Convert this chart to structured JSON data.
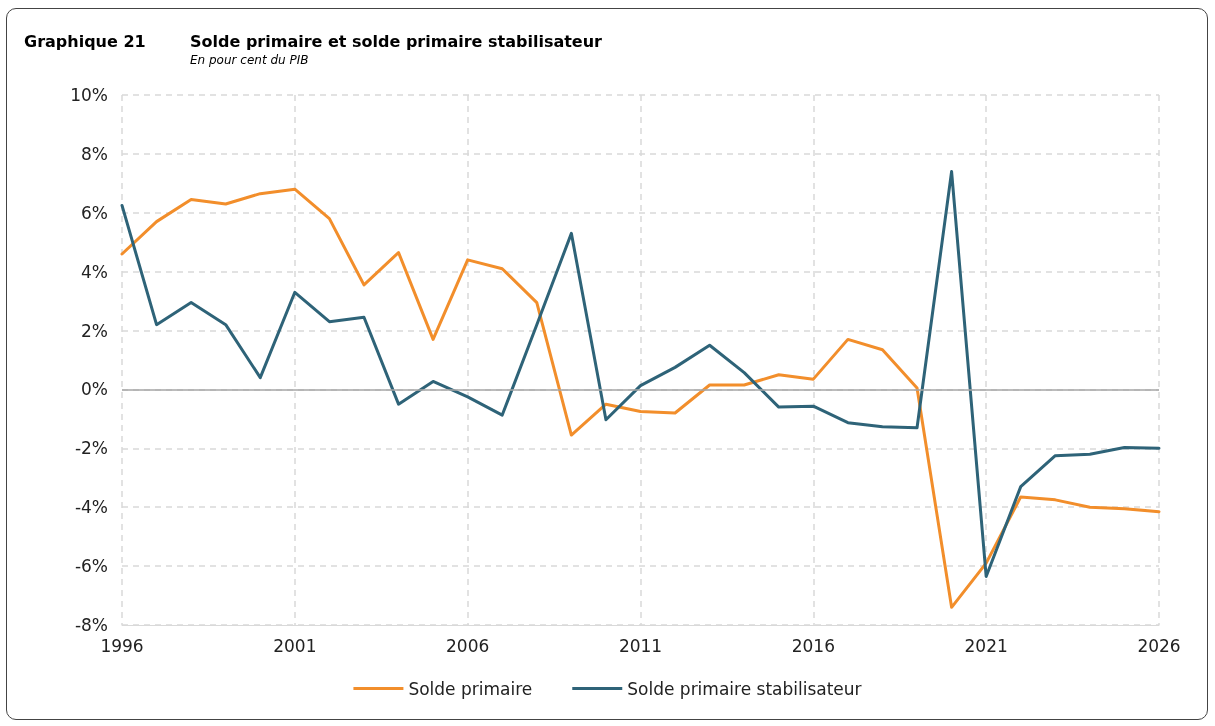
{
  "chart_data": {
    "type": "line",
    "title": "Solde primaire et solde primaire stabilisateur",
    "subtitle": "En pour cent du PIB",
    "annotations": [
      "Graphique 21"
    ],
    "x": [
      1996,
      1997,
      1998,
      1999,
      2000,
      2001,
      2002,
      2003,
      2004,
      2005,
      2006,
      2007,
      2008,
      2009,
      2010,
      2011,
      2012,
      2013,
      2014,
      2015,
      2016,
      2017,
      2018,
      2019,
      2020,
      2021,
      2022,
      2023,
      2024,
      2025,
      2026
    ],
    "series": [
      {
        "name": "Solde primaire",
        "color": "#f28e2b",
        "values": [
          4.6,
          5.7,
          6.45,
          6.3,
          6.65,
          6.8,
          5.8,
          3.55,
          4.65,
          1.7,
          4.4,
          4.1,
          2.95,
          -1.55,
          -0.5,
          -0.75,
          -0.8,
          0.15,
          0.15,
          0.5,
          0.35,
          1.7,
          1.35,
          0.05,
          -7.4,
          -5.9,
          -3.65,
          -3.75,
          -4.0,
          -4.05,
          -4.15
        ]
      },
      {
        "name": "Solde primaire stabilisateur",
        "color": "#2e6378",
        "values": [
          6.25,
          2.2,
          2.95,
          2.2,
          0.4,
          3.3,
          2.3,
          2.45,
          -0.5,
          0.27,
          -0.25,
          -0.87,
          2.2,
          5.3,
          -1.03,
          0.13,
          0.75,
          1.5,
          0.57,
          -0.6,
          -0.57,
          -1.13,
          -1.27,
          -1.3,
          7.4,
          -6.35,
          -3.3,
          -2.25,
          -2.2,
          -1.97,
          -2.0
        ]
      }
    ],
    "xlim": [
      1996,
      2026
    ],
    "xticks": [
      1996,
      2001,
      2006,
      2011,
      2016,
      2021,
      2026
    ],
    "ylim": [
      -8,
      10
    ],
    "yticks": [
      {
        "value": -8,
        "label": "-8%"
      },
      {
        "value": -6,
        "label": "-6%"
      },
      {
        "value": -4,
        "label": "-4%"
      },
      {
        "value": -2,
        "label": "-2%"
      },
      {
        "value": 0,
        "label": "0%"
      },
      {
        "value": 2,
        "label": "2%"
      },
      {
        "value": 4,
        "label": "4%"
      },
      {
        "value": 6,
        "label": "6%"
      },
      {
        "value": 8,
        "label": "8%"
      },
      {
        "value": 10,
        "label": "10%"
      }
    ],
    "ref_lines": [
      {
        "axis": "y",
        "value": 0,
        "color": "#a6a6a6"
      }
    ],
    "grid": true,
    "legend": "bottom",
    "marker": "none",
    "line_style": "solid"
  }
}
